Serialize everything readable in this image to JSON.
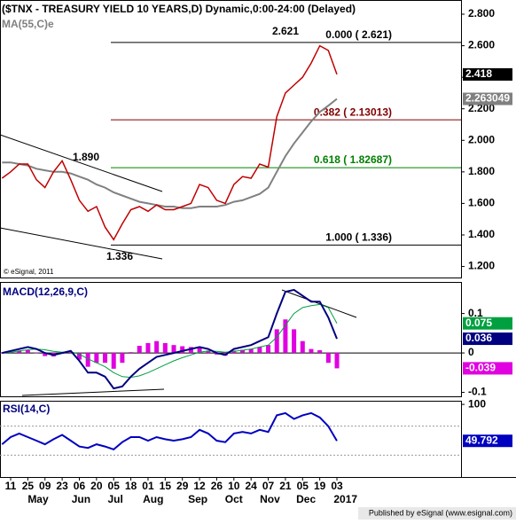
{
  "chart_data": [
    {
      "type": "price",
      "title": "($TNX - TREASURY YIELD 10 YEARS,D) Dynamic,0:00-24:00 (Delayed)",
      "ylim": [
        1.13,
        2.89
      ],
      "yticks": [
        {
          "value": 2.8,
          "label": "2.800"
        },
        {
          "value": 2.6,
          "label": "2.600"
        },
        {
          "value": 2.4,
          "label": "2.400"
        },
        {
          "value": 2.2,
          "label": "2.200"
        },
        {
          "value": 2.0,
          "label": "2.000"
        },
        {
          "value": 1.8,
          "label": "1.800"
        },
        {
          "value": 1.6,
          "label": "1.600"
        },
        {
          "value": 1.4,
          "label": "1.400"
        },
        {
          "value": 1.2,
          "label": "1.200"
        }
      ],
      "series": [
        {
          "color": "#c00000",
          "values": [
            1.76,
            1.8,
            1.85,
            1.85,
            1.75,
            1.7,
            1.8,
            1.87,
            1.75,
            1.62,
            1.55,
            1.58,
            1.45,
            1.37,
            1.47,
            1.56,
            1.58,
            1.55,
            1.59,
            1.56,
            1.56,
            1.58,
            1.6,
            1.72,
            1.7,
            1.62,
            1.6,
            1.72,
            1.77,
            1.76,
            1.85,
            1.83,
            2.15,
            2.3,
            2.35,
            2.4,
            2.49,
            2.6,
            2.57,
            2.418
          ]
        },
        {
          "name": "MA(55,C)e",
          "color": "#808080",
          "values": [
            1.86,
            1.86,
            1.85,
            1.84,
            1.82,
            1.81,
            1.8,
            1.8,
            1.79,
            1.77,
            1.75,
            1.72,
            1.7,
            1.67,
            1.65,
            1.63,
            1.61,
            1.6,
            1.59,
            1.58,
            1.58,
            1.57,
            1.57,
            1.58,
            1.58,
            1.58,
            1.59,
            1.61,
            1.62,
            1.64,
            1.66,
            1.7,
            1.8,
            1.9,
            1.98,
            2.05,
            2.12,
            2.18,
            2.22,
            2.263049
          ]
        }
      ],
      "label_colors": [
        "#000000",
        "#808080"
      ],
      "fib_levels": [
        {
          "value": 2.621,
          "label": "0.000 ( 2.621)",
          "color": "#000000"
        },
        {
          "value": 2.13013,
          "label": "0.382 ( 2.13013)",
          "color": "#800000"
        },
        {
          "value": 1.82687,
          "label": "0.618 ( 1.82687)",
          "color": "#008000"
        },
        {
          "value": 1.336,
          "label": "1.000 ( 1.336)",
          "color": "#000000"
        }
      ],
      "annotations": [
        "2.621",
        "1.890",
        "1.336"
      ],
      "credit": "© eSignal, 2011"
    },
    {
      "type": "macd",
      "title": "MACD(12,26,9,C)",
      "ylim": [
        -0.11,
        0.18
      ],
      "yticks": [
        0.1,
        0,
        -0.1
      ],
      "series": [
        {
          "color": "#000080",
          "values": [
            0.0,
            0.005,
            0.01,
            0.015,
            0.01,
            0.0,
            -0.005,
            0.0,
            0.005,
            -0.02,
            -0.05,
            -0.05,
            -0.06,
            -0.09,
            -0.085,
            -0.06,
            -0.04,
            -0.025,
            -0.01,
            -0.005,
            0.0,
            0.005,
            0.01,
            0.015,
            0.01,
            0.0,
            -0.005,
            0.01,
            0.015,
            0.02,
            0.03,
            0.04,
            0.1,
            0.155,
            0.16,
            0.145,
            0.13,
            0.13,
            0.09,
            0.036
          ]
        },
        {
          "color": "#00a040",
          "values": [
            0.0,
            0.002,
            0.005,
            0.008,
            0.01,
            0.008,
            0.004,
            0.002,
            0.003,
            -0.003,
            -0.015,
            -0.025,
            -0.035,
            -0.05,
            -0.06,
            -0.062,
            -0.058,
            -0.05,
            -0.04,
            -0.03,
            -0.02,
            -0.012,
            -0.005,
            0.002,
            0.005,
            0.004,
            0.002,
            0.004,
            0.007,
            0.01,
            0.015,
            0.02,
            0.04,
            0.07,
            0.1,
            0.115,
            0.12,
            0.123,
            0.115,
            0.075
          ]
        },
        {
          "color": "#e000e0",
          "values": [
            0.0,
            0.003,
            0.005,
            0.007,
            0.0,
            -0.008,
            -0.009,
            -0.002,
            0.002,
            -0.017,
            -0.035,
            -0.025,
            -0.025,
            -0.04,
            -0.025,
            0.002,
            0.018,
            0.025,
            0.03,
            0.025,
            0.02,
            0.017,
            0.015,
            0.013,
            0.005,
            -0.004,
            -0.007,
            0.006,
            0.008,
            0.01,
            0.015,
            0.02,
            0.06,
            0.085,
            0.06,
            0.03,
            0.01,
            0.007,
            -0.025,
            -0.039
          ]
        }
      ]
    },
    {
      "type": "rsi",
      "title": "RSI(14,C)",
      "ylim": [
        0,
        105
      ],
      "yticks": [
        100
      ],
      "levels": [
        70,
        30
      ],
      "series": [
        {
          "color": "#0000c0",
          "values": [
            45,
            55,
            60,
            55,
            50,
            45,
            52,
            58,
            50,
            42,
            40,
            45,
            42,
            38,
            48,
            55,
            55,
            50,
            55,
            52,
            50,
            52,
            55,
            65,
            60,
            50,
            48,
            60,
            62,
            60,
            65,
            62,
            85,
            88,
            80,
            85,
            88,
            82,
            70,
            49.792
          ]
        }
      ],
      "x_labels": [
        "11",
        "25",
        "09",
        "23",
        "06",
        "20",
        "05",
        "18",
        "01",
        "15",
        "29",
        "12",
        "26",
        "10",
        "24",
        "07",
        "21",
        "05",
        "19",
        "03"
      ],
      "month_labels": [
        "May",
        "Jun",
        "Jul",
        "Aug",
        "Sep",
        "Oct",
        "Nov",
        "Dec",
        "2017"
      ],
      "footer": "Published by eSignal (www.esignal.com)"
    }
  ]
}
